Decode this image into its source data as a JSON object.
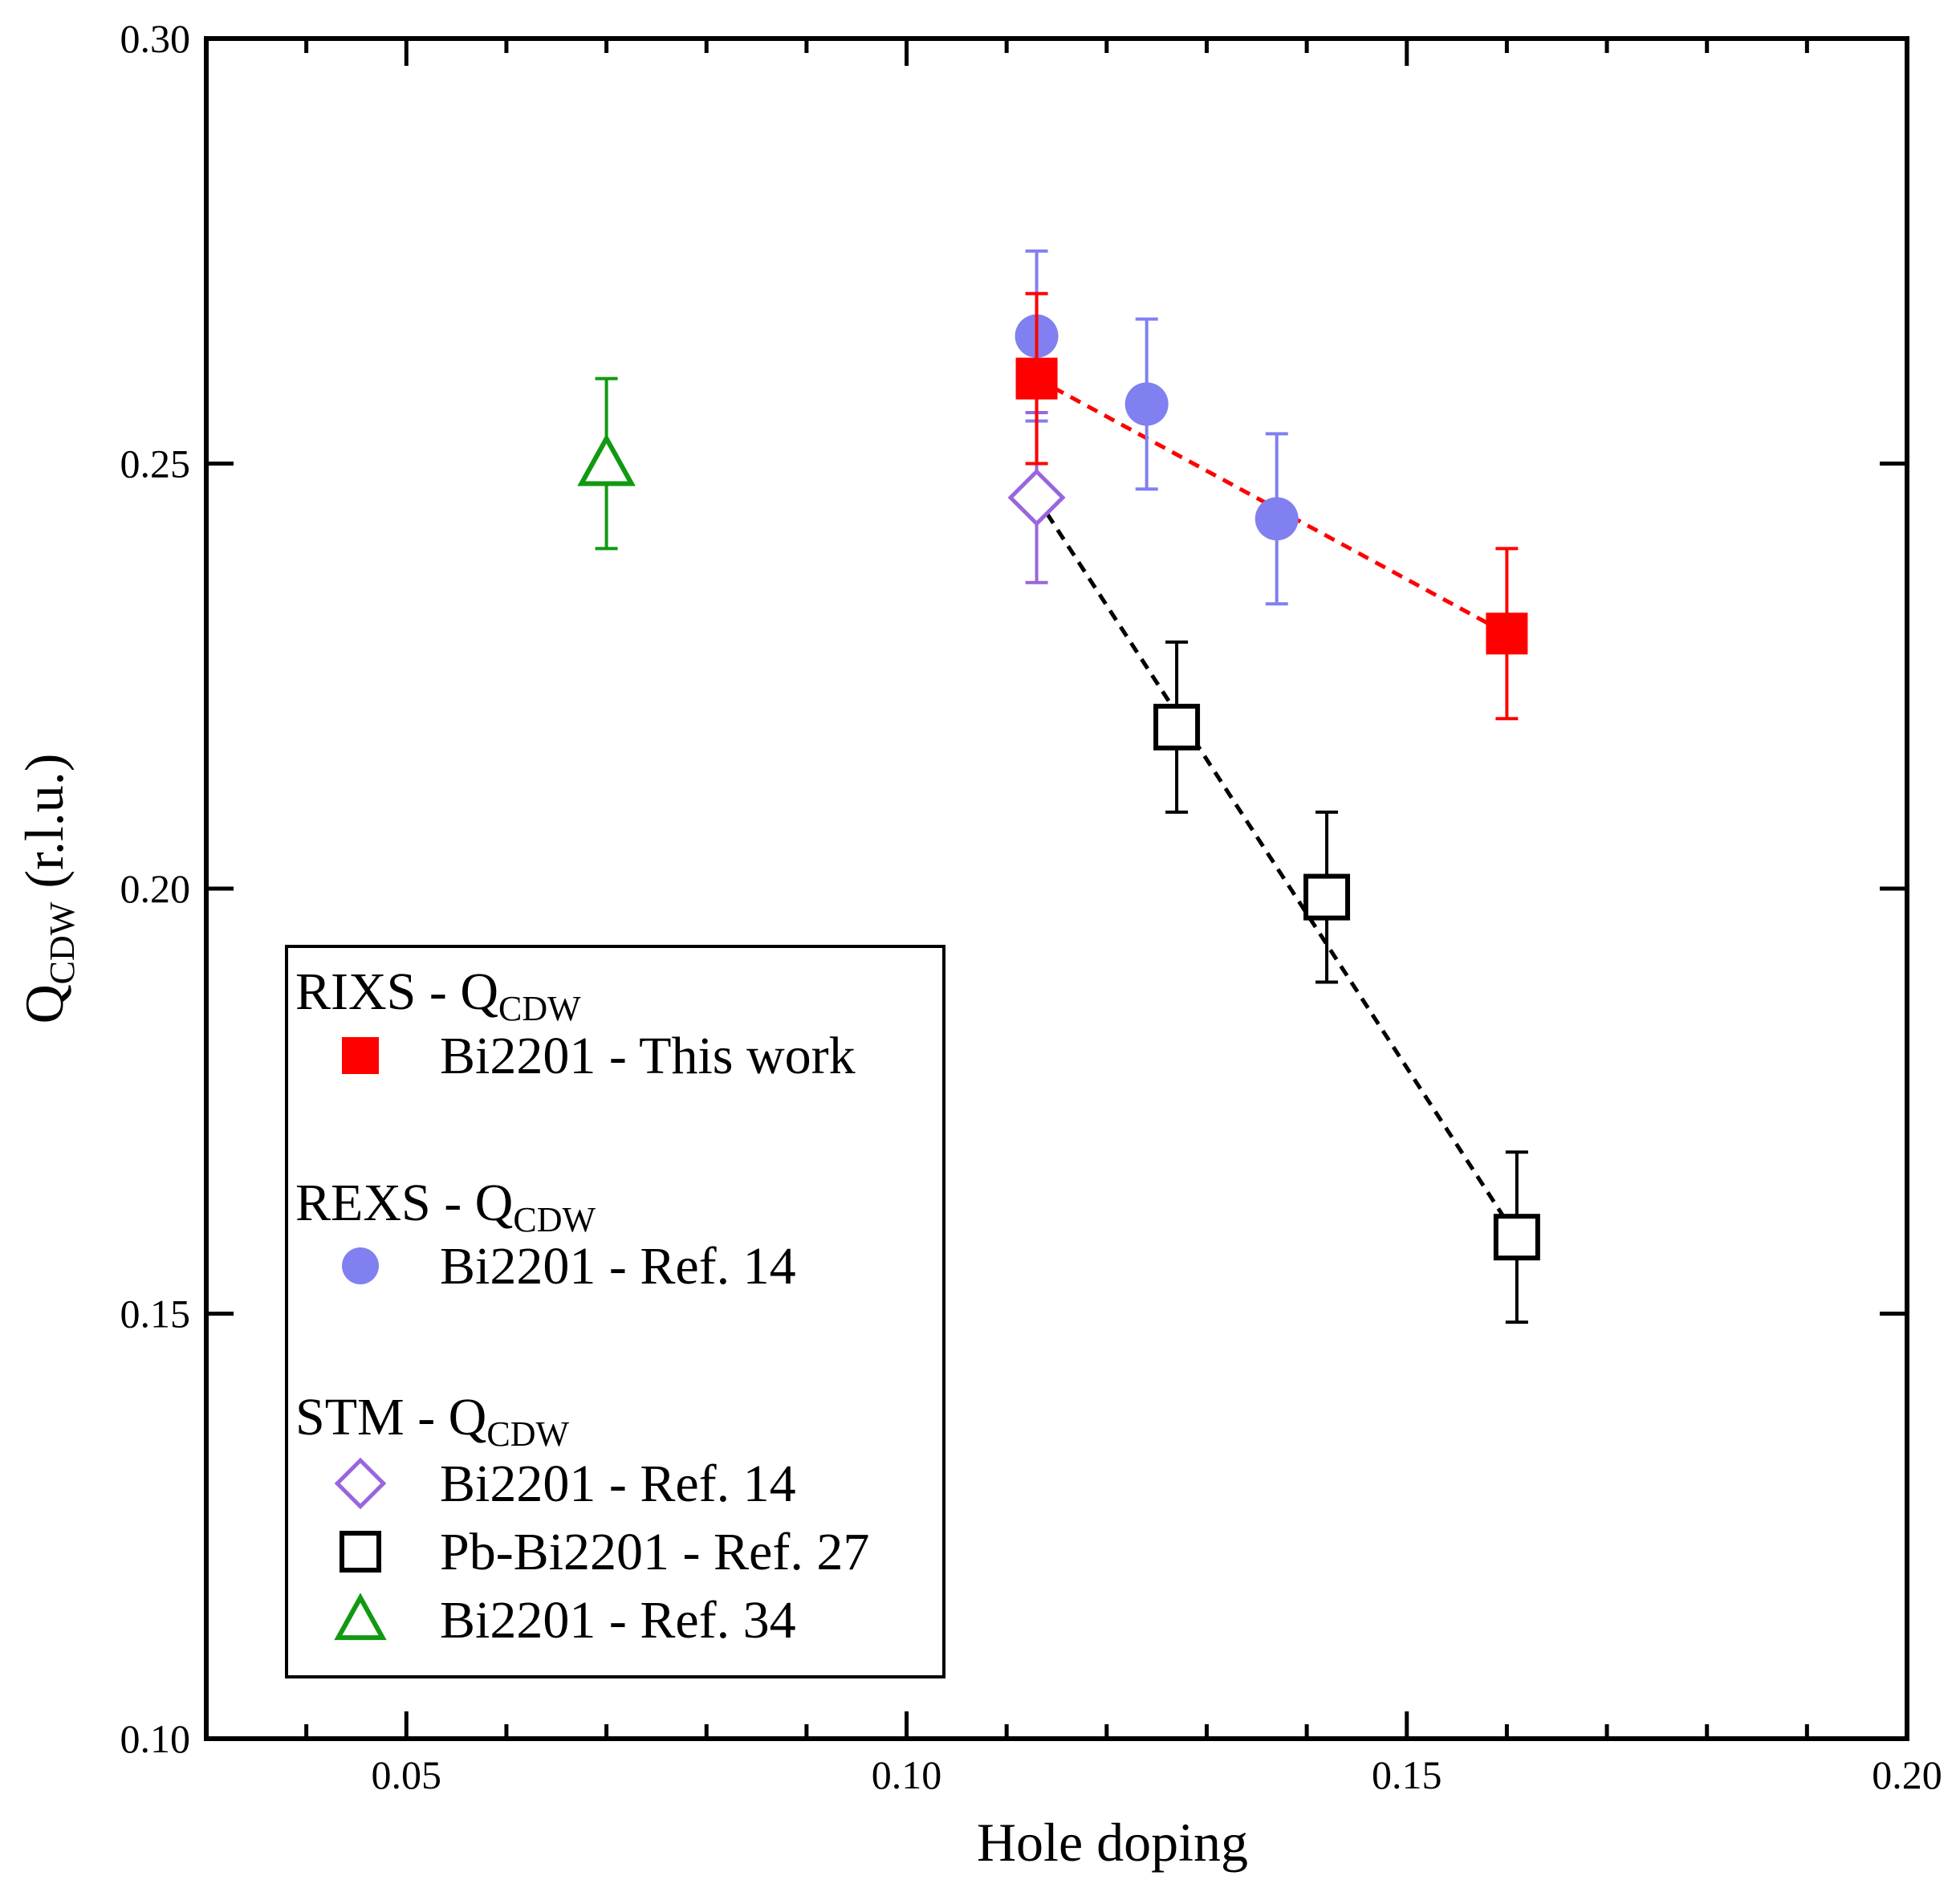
{
  "chart_data": {
    "type": "scatter",
    "xlabel": "Hole doping",
    "ylabel_main": "Q",
    "ylabel_sub": "CDW",
    "ylabel_rest": " (r.l.u.)",
    "xlim": [
      0.03,
      0.2
    ],
    "ylim": [
      0.1,
      0.3
    ],
    "x_ticks": [
      0.05,
      0.1,
      0.15,
      0.2
    ],
    "x_tick_labels": [
      "0.05",
      "0.10",
      "0.15",
      "0.20"
    ],
    "x_minor_step": 0.01,
    "y_ticks": [
      0.1,
      0.15,
      0.2,
      0.25,
      0.3
    ],
    "y_tick_labels": [
      "0.10",
      "0.15",
      "0.20",
      "0.25",
      "0.30"
    ],
    "series": [
      {
        "name": "Bi2201 - This work",
        "group": "RIXS",
        "marker": "filled-square",
        "color": "#ff0000",
        "fit_line": true,
        "x": [
          0.113,
          0.16
        ],
        "y": [
          0.26,
          0.23
        ],
        "yerr": [
          0.01,
          0.01
        ]
      },
      {
        "name": "Bi2201 - Ref. 14",
        "group": "REXS",
        "marker": "filled-circle",
        "color": "#8080f0",
        "fit_line": false,
        "x": [
          0.113,
          0.124,
          0.137
        ],
        "y": [
          0.265,
          0.257,
          0.2435
        ],
        "yerr": [
          0.01,
          0.01,
          0.01
        ]
      },
      {
        "name": "Bi2201 - Ref. 14",
        "group": "STM",
        "marker": "open-diamond",
        "color": "#9966dd",
        "fit_line": false,
        "x": [
          0.113
        ],
        "y": [
          0.246
        ],
        "yerr": [
          0.01
        ]
      },
      {
        "name": "Pb-Bi2201 - Ref. 27",
        "group": "STM",
        "marker": "open-square",
        "color": "#000000",
        "fit_line": true,
        "x": [
          0.127,
          0.142,
          0.161
        ],
        "y": [
          0.219,
          0.199,
          0.159
        ],
        "yerr": [
          0.01,
          0.01,
          0.01
        ]
      },
      {
        "name": "Bi2201 - Ref. 34",
        "group": "STM",
        "marker": "open-triangle",
        "color": "#119911",
        "fit_line": false,
        "x": [
          0.07
        ],
        "y": [
          0.25
        ],
        "yerr": [
          0.01
        ]
      }
    ],
    "dashed_fits": [
      {
        "color": "#ff0000",
        "x": [
          0.113,
          0.16
        ],
        "y": [
          0.26,
          0.23
        ]
      },
      {
        "color": "#000000",
        "x": [
          0.113,
          0.161
        ],
        "y": [
          0.246,
          0.159
        ]
      }
    ],
    "legend": {
      "placement": "bottom-left",
      "groups": [
        {
          "title_main": "RIXS - Q",
          "title_sub": "CDW",
          "entries": [
            {
              "label": "Bi2201 - This work",
              "marker": "filled-square",
              "color": "#ff0000"
            }
          ]
        },
        {
          "title_main": "REXS - Q",
          "title_sub": "CDW",
          "entries": [
            {
              "label": "Bi2201 - Ref. 14",
              "marker": "filled-circle",
              "color": "#8080f0"
            }
          ]
        },
        {
          "title_main": "STM - Q",
          "title_sub": "CDW",
          "entries": [
            {
              "label": "Bi2201 - Ref. 14",
              "marker": "open-diamond",
              "color": "#9966dd"
            },
            {
              "label": "Pb-Bi2201 - Ref. 27",
              "marker": "open-square",
              "color": "#000000"
            },
            {
              "label": "Bi2201 - Ref. 34",
              "marker": "open-triangle",
              "color": "#119911"
            }
          ]
        }
      ]
    }
  }
}
